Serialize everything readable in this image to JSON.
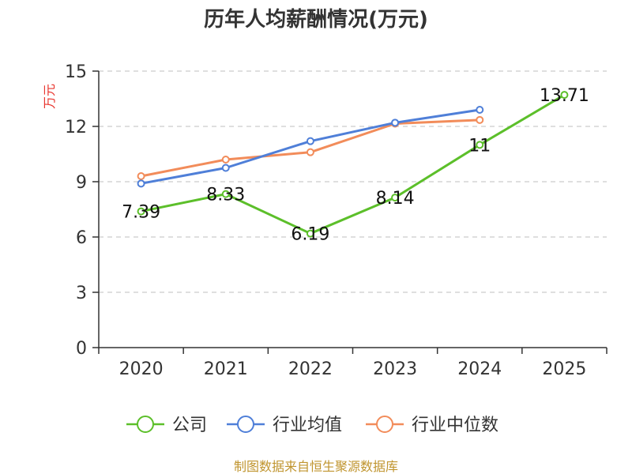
{
  "chart_data": {
    "type": "line",
    "title": "历年人均薪酬情况(万元)",
    "ylabel": "万元",
    "xlabel": "",
    "categories": [
      "2020",
      "2021",
      "2022",
      "2023",
      "2024",
      "2025"
    ],
    "y_ticks": [
      "0",
      "3",
      "6",
      "9",
      "12",
      "15"
    ],
    "ylim": [
      0,
      15
    ],
    "grid": true,
    "legend_position": "bottom",
    "series": [
      {
        "name": "公司",
        "color": "#5cbf2a",
        "values": [
          7.39,
          8.33,
          6.19,
          8.14,
          11,
          13.71
        ],
        "labels": [
          "7.39",
          "8.33",
          "6.19",
          "8.14",
          "11",
          "13.71"
        ]
      },
      {
        "name": "行业均值",
        "color": "#4f7fd8",
        "values": [
          8.9,
          9.75,
          11.2,
          12.2,
          12.9,
          null
        ]
      },
      {
        "name": "行业中位数",
        "color": "#f28c5a",
        "values": [
          9.3,
          10.2,
          10.6,
          12.15,
          12.35,
          null
        ]
      }
    ]
  },
  "footer": {
    "source": "制图数据来自恒生聚源数据库"
  }
}
